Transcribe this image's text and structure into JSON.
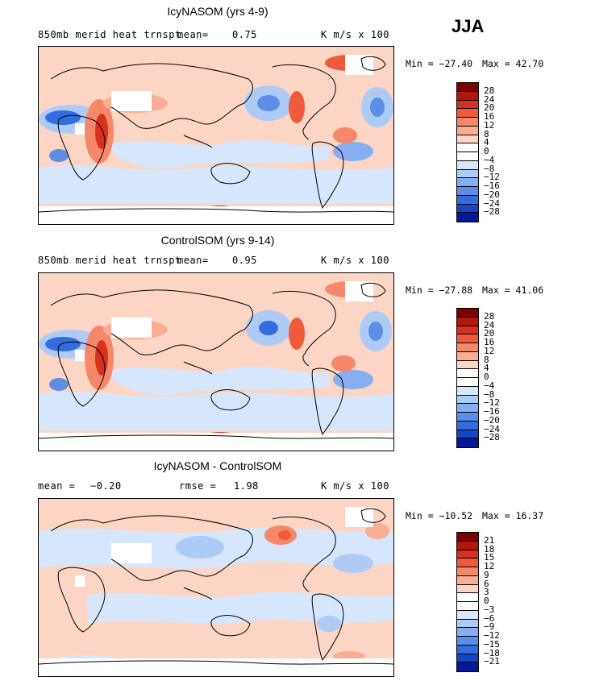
{
  "season": "JJA",
  "units": "K m/s x 100",
  "panels": [
    {
      "title": "IcyNASOM (yrs 4-9)",
      "label": "850mb merid heat trnspt",
      "stat1_label": "mean=",
      "stat1_value": "0.75",
      "stat2_label": "",
      "stat2_value": "",
      "min_text": "Min = −27.40",
      "max_text": "Max =  42.70",
      "colorbar_ticks": [
        "28",
        "24",
        "20",
        "16",
        "12",
        "8",
        "4",
        "0",
        "−4",
        "−8",
        "−12",
        "−16",
        "−20",
        "−24",
        "−28"
      ]
    },
    {
      "title": "ControlSOM (yrs 9-14)",
      "label": "850mb merid heat trnspt",
      "stat1_label": "mean=",
      "stat1_value": "0.95",
      "stat2_label": "",
      "stat2_value": "",
      "min_text": "Min = −27.88",
      "max_text": "Max =  41.06",
      "colorbar_ticks": [
        "28",
        "24",
        "20",
        "16",
        "12",
        "8",
        "4",
        "0",
        "−4",
        "−8",
        "−12",
        "−16",
        "−20",
        "−24",
        "−28"
      ]
    },
    {
      "title": "IcyNASOM - ControlSOM",
      "label": "",
      "stat1_label": "mean =",
      "stat1_value": "−0.20",
      "stat2_label": "rmse =",
      "stat2_value": "1.98",
      "min_text": "Min = −10.52",
      "max_text": "Max =  16.37",
      "colorbar_ticks": [
        "21",
        "18",
        "15",
        "12",
        "9",
        "6",
        "3",
        "0",
        "−3",
        "−6",
        "−9",
        "−12",
        "−15",
        "−18",
        "−21"
      ]
    }
  ],
  "colors": {
    "red": [
      "#7f0000",
      "#b2160c",
      "#d7301f",
      "#ef5a3b",
      "#f5876a",
      "#f9ae93",
      "#fcd5c4"
    ],
    "zero": "#ffffff",
    "blue": [
      "#d6e6fc",
      "#aecbf6",
      "#86aef0",
      "#5c8ee8",
      "#326ce0",
      "#1446c8",
      "#001a99"
    ]
  }
}
